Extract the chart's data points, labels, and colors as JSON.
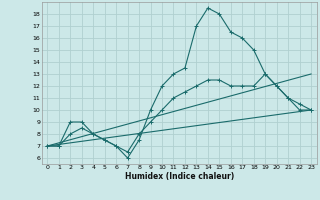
{
  "xlabel": "Humidex (Indice chaleur)",
  "ylabel": "",
  "background_color": "#cce8e8",
  "grid_color": "#b0d0d0",
  "line_color": "#1a6b6b",
  "xlim": [
    -0.5,
    23.5
  ],
  "ylim": [
    5.5,
    19
  ],
  "xticks": [
    0,
    1,
    2,
    3,
    4,
    5,
    6,
    7,
    8,
    9,
    10,
    11,
    12,
    13,
    14,
    15,
    16,
    17,
    18,
    19,
    20,
    21,
    22,
    23
  ],
  "yticks": [
    6,
    7,
    8,
    9,
    10,
    11,
    12,
    13,
    14,
    15,
    16,
    17,
    18
  ],
  "lines": [
    {
      "x": [
        0,
        1,
        2,
        3,
        4,
        5,
        6,
        7,
        8,
        9,
        10,
        11,
        12,
        13,
        14,
        15,
        16,
        17,
        18,
        19,
        20,
        21,
        22,
        23
      ],
      "y": [
        7,
        7,
        8,
        8.5,
        8,
        7.5,
        7,
        6,
        7.5,
        10,
        12,
        13,
        13.5,
        17,
        18.5,
        18,
        16.5,
        16,
        15,
        13,
        12,
        11,
        10,
        10
      ],
      "marker": true
    },
    {
      "x": [
        0,
        1,
        2,
        3,
        4,
        5,
        6,
        7,
        8,
        9,
        10,
        11,
        12,
        13,
        14,
        15,
        16,
        17,
        18,
        19,
        20,
        21,
        22,
        23
      ],
      "y": [
        7,
        7,
        9,
        9,
        8,
        7.5,
        7,
        6.5,
        8,
        9,
        10,
        11,
        11.5,
        12,
        12.5,
        12.5,
        12,
        12,
        12,
        13,
        12,
        11,
        10.5,
        10
      ],
      "marker": true
    },
    {
      "x": [
        0,
        23
      ],
      "y": [
        7,
        13
      ],
      "marker": false
    },
    {
      "x": [
        0,
        23
      ],
      "y": [
        7,
        10
      ],
      "marker": false
    }
  ]
}
